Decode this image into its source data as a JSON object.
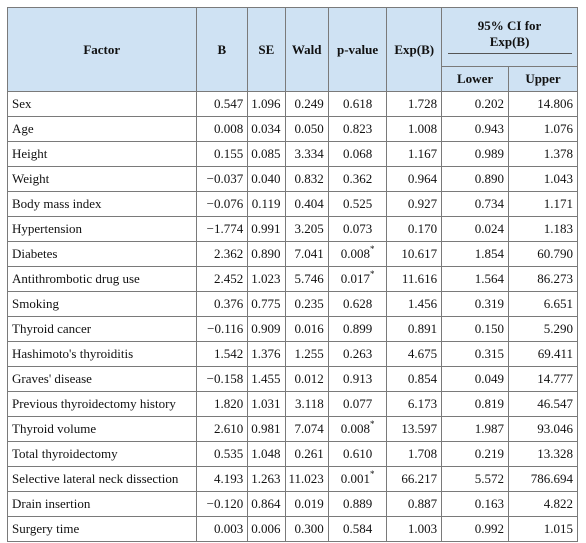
{
  "headers": {
    "factor": "Factor",
    "b": "B",
    "se": "SE",
    "wald": "Wald",
    "pvalue": "p-value",
    "expb": "Exp(B)",
    "ci_line1": "95% CI for",
    "ci_line2": "Exp(B)",
    "lower": "Lower",
    "upper": "Upper"
  },
  "rows": [
    {
      "factor": "Sex",
      "b": "0.547",
      "se": "1.096",
      "wald": "0.249",
      "p": "0.618",
      "sig": "",
      "exp": "1.728",
      "lower": "0.202",
      "upper": "14.806"
    },
    {
      "factor": "Age",
      "b": "0.008",
      "se": "0.034",
      "wald": "0.050",
      "p": "0.823",
      "sig": "",
      "exp": "1.008",
      "lower": "0.943",
      "upper": "1.076"
    },
    {
      "factor": "Height",
      "b": "0.155",
      "se": "0.085",
      "wald": "3.334",
      "p": "0.068",
      "sig": "",
      "exp": "1.167",
      "lower": "0.989",
      "upper": "1.378"
    },
    {
      "factor": "Weight",
      "b": "−0.037",
      "se": "0.040",
      "wald": "0.832",
      "p": "0.362",
      "sig": "",
      "exp": "0.964",
      "lower": "0.890",
      "upper": "1.043"
    },
    {
      "factor": "Body mass index",
      "b": "−0.076",
      "se": "0.119",
      "wald": "0.404",
      "p": "0.525",
      "sig": "",
      "exp": "0.927",
      "lower": "0.734",
      "upper": "1.171"
    },
    {
      "factor": "Hypertension",
      "b": "−1.774",
      "se": "0.991",
      "wald": "3.205",
      "p": "0.073",
      "sig": "",
      "exp": "0.170",
      "lower": "0.024",
      "upper": "1.183"
    },
    {
      "factor": "Diabetes",
      "b": "2.362",
      "se": "0.890",
      "wald": "7.041",
      "p": "0.008",
      "sig": "*",
      "exp": "10.617",
      "lower": "1.854",
      "upper": "60.790"
    },
    {
      "factor": "Antithrombotic drug use",
      "b": "2.452",
      "se": "1.023",
      "wald": "5.746",
      "p": "0.017",
      "sig": "*",
      "exp": "11.616",
      "lower": "1.564",
      "upper": "86.273"
    },
    {
      "factor": "Smoking",
      "b": "0.376",
      "se": "0.775",
      "wald": "0.235",
      "p": "0.628",
      "sig": "",
      "exp": "1.456",
      "lower": "0.319",
      "upper": "6.651"
    },
    {
      "factor": "Thyroid cancer",
      "b": "−0.116",
      "se": "0.909",
      "wald": "0.016",
      "p": "0.899",
      "sig": "",
      "exp": "0.891",
      "lower": "0.150",
      "upper": "5.290"
    },
    {
      "factor": "Hashimoto's thyroiditis",
      "b": "1.542",
      "se": "1.376",
      "wald": "1.255",
      "p": "0.263",
      "sig": "",
      "exp": "4.675",
      "lower": "0.315",
      "upper": "69.411"
    },
    {
      "factor": "Graves' disease",
      "b": "−0.158",
      "se": "1.455",
      "wald": "0.012",
      "p": "0.913",
      "sig": "",
      "exp": "0.854",
      "lower": "0.049",
      "upper": "14.777"
    },
    {
      "factor": "Previous thyroidectomy history",
      "b": "1.820",
      "se": "1.031",
      "wald": "3.118",
      "p": "0.077",
      "sig": "",
      "exp": "6.173",
      "lower": "0.819",
      "upper": "46.547"
    },
    {
      "factor": "Thyroid volume",
      "b": "2.610",
      "se": "0.981",
      "wald": "7.074",
      "p": "0.008",
      "sig": "*",
      "exp": "13.597",
      "lower": "1.987",
      "upper": "93.046"
    },
    {
      "factor": "Total thyroidectomy",
      "b": "0.535",
      "se": "1.048",
      "wald": "0.261",
      "p": "0.610",
      "sig": "",
      "exp": "1.708",
      "lower": "0.219",
      "upper": "13.328"
    },
    {
      "factor": "Selective lateral neck dissection",
      "b": "4.193",
      "se": "1.263",
      "wald": "11.023",
      "p": "0.001",
      "sig": "*",
      "exp": "66.217",
      "lower": "5.572",
      "upper": "786.694"
    },
    {
      "factor": "Drain insertion",
      "b": "−0.120",
      "se": "0.864",
      "wald": "0.019",
      "p": "0.889",
      "sig": "",
      "exp": "0.887",
      "lower": "0.163",
      "upper": "4.822"
    },
    {
      "factor": "Surgery time",
      "b": "0.003",
      "se": "0.006",
      "wald": "0.300",
      "p": "0.584",
      "sig": "",
      "exp": "1.003",
      "lower": "0.992",
      "upper": "1.015"
    }
  ]
}
